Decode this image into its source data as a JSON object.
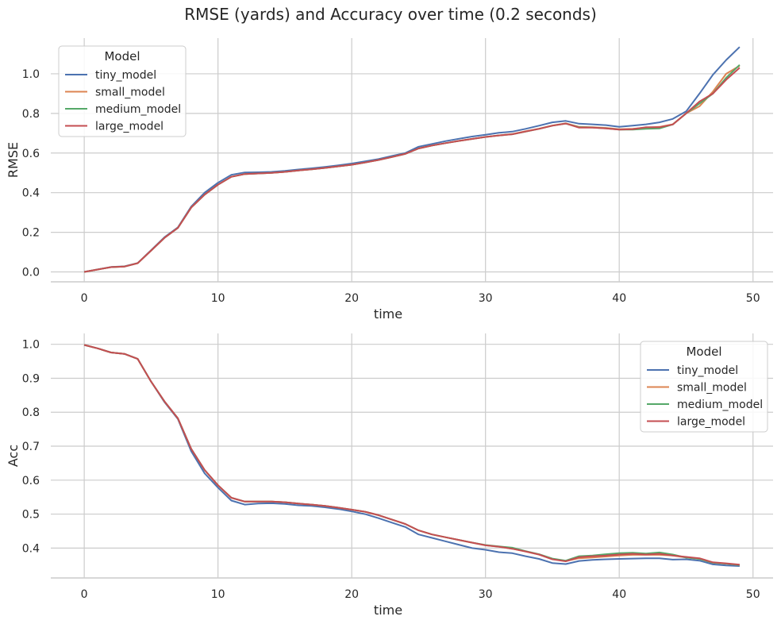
{
  "figure_title": "RMSE (yards) and Accuracy over time (0.2 seconds)",
  "chart_data": [
    {
      "type": "line",
      "title": "RMSE (yards) and Accuracy over time (0.2 seconds)",
      "xlabel": "time",
      "ylabel": "RMSE",
      "xlim": [
        -2.5,
        51.5
      ],
      "ylim": [
        -0.05,
        1.18
      ],
      "xticks": [
        0,
        10,
        20,
        30,
        40,
        50
      ],
      "xtick_labels": [
        "0",
        "10",
        "20",
        "30",
        "40",
        "50"
      ],
      "yticks": [
        0.0,
        0.2,
        0.4,
        0.6,
        0.8,
        1.0
      ],
      "ytick_labels": [
        "0.0",
        "0.2",
        "0.4",
        "0.6",
        "0.8",
        "1.0"
      ],
      "grid": true,
      "legend": {
        "title": "Model",
        "placement": "top-left"
      },
      "x": [
        0,
        1,
        2,
        3,
        4,
        5,
        6,
        7,
        8,
        9,
        10,
        11,
        12,
        13,
        14,
        15,
        16,
        17,
        18,
        19,
        20,
        21,
        22,
        23,
        24,
        25,
        26,
        27,
        28,
        29,
        30,
        31,
        32,
        33,
        34,
        35,
        36,
        37,
        38,
        39,
        40,
        41,
        42,
        43,
        44,
        45,
        46,
        47,
        48,
        49
      ],
      "series": [
        {
          "name": "tiny_model",
          "color": "#4c72b0",
          "values": [
            0.0,
            0.013,
            0.025,
            0.028,
            0.045,
            0.11,
            0.175,
            0.225,
            0.33,
            0.4,
            0.45,
            0.49,
            0.502,
            0.503,
            0.505,
            0.51,
            0.517,
            0.523,
            0.53,
            0.538,
            0.547,
            0.558,
            0.57,
            0.585,
            0.6,
            0.632,
            0.646,
            0.66,
            0.672,
            0.683,
            0.692,
            0.702,
            0.708,
            0.722,
            0.738,
            0.755,
            0.762,
            0.748,
            0.745,
            0.741,
            0.732,
            0.738,
            0.745,
            0.755,
            0.772,
            0.81,
            0.9,
            0.995,
            1.07,
            1.135
          ]
        },
        {
          "name": "small_model",
          "color": "#dd8452",
          "values": [
            0.0,
            0.012,
            0.024,
            0.027,
            0.044,
            0.108,
            0.172,
            0.222,
            0.325,
            0.39,
            0.44,
            0.48,
            0.494,
            0.497,
            0.5,
            0.505,
            0.512,
            0.518,
            0.525,
            0.533,
            0.541,
            0.552,
            0.565,
            0.58,
            0.596,
            0.623,
            0.638,
            0.65,
            0.661,
            0.671,
            0.681,
            0.689,
            0.696,
            0.71,
            0.723,
            0.739,
            0.75,
            0.732,
            0.73,
            0.727,
            0.72,
            0.722,
            0.728,
            0.732,
            0.745,
            0.8,
            0.836,
            0.91,
            1.0,
            1.04
          ]
        },
        {
          "name": "medium_model",
          "color": "#55a868",
          "values": [
            0.0,
            0.012,
            0.024,
            0.027,
            0.044,
            0.108,
            0.172,
            0.222,
            0.325,
            0.39,
            0.44,
            0.48,
            0.494,
            0.497,
            0.5,
            0.505,
            0.512,
            0.518,
            0.525,
            0.533,
            0.541,
            0.552,
            0.565,
            0.58,
            0.596,
            0.623,
            0.638,
            0.65,
            0.661,
            0.671,
            0.681,
            0.689,
            0.695,
            0.708,
            0.722,
            0.738,
            0.749,
            0.73,
            0.729,
            0.725,
            0.718,
            0.718,
            0.722,
            0.724,
            0.744,
            0.8,
            0.85,
            0.9,
            0.98,
            1.045
          ]
        },
        {
          "name": "large_model",
          "color": "#c44e52",
          "values": [
            0.0,
            0.012,
            0.024,
            0.027,
            0.044,
            0.108,
            0.172,
            0.222,
            0.325,
            0.39,
            0.44,
            0.48,
            0.494,
            0.497,
            0.5,
            0.505,
            0.512,
            0.518,
            0.525,
            0.533,
            0.541,
            0.552,
            0.565,
            0.58,
            0.596,
            0.623,
            0.638,
            0.65,
            0.661,
            0.671,
            0.681,
            0.689,
            0.695,
            0.709,
            0.722,
            0.738,
            0.749,
            0.728,
            0.728,
            0.724,
            0.718,
            0.72,
            0.73,
            0.73,
            0.744,
            0.8,
            0.86,
            0.9,
            0.97,
            1.03
          ]
        }
      ]
    },
    {
      "type": "line",
      "xlabel": "time",
      "ylabel": "Acc",
      "xlim": [
        -2.5,
        51.5
      ],
      "ylim": [
        0.312,
        1.032
      ],
      "xticks": [
        0,
        10,
        20,
        30,
        40,
        50
      ],
      "xtick_labels": [
        "0",
        "10",
        "20",
        "30",
        "40",
        "50"
      ],
      "yticks": [
        0.4,
        0.5,
        0.6,
        0.7,
        0.8,
        0.9,
        1.0
      ],
      "ytick_labels": [
        "0.4",
        "0.5",
        "0.6",
        "0.7",
        "0.8",
        "0.9",
        "1.0"
      ],
      "grid": true,
      "legend": {
        "title": "Model",
        "placement": "top-right"
      },
      "x": [
        0,
        1,
        2,
        3,
        4,
        5,
        6,
        7,
        8,
        9,
        10,
        11,
        12,
        13,
        14,
        15,
        16,
        17,
        18,
        19,
        20,
        21,
        22,
        23,
        24,
        25,
        26,
        27,
        28,
        29,
        30,
        31,
        32,
        33,
        34,
        35,
        36,
        37,
        38,
        39,
        40,
        41,
        42,
        43,
        44,
        45,
        46,
        47,
        48,
        49
      ],
      "series": [
        {
          "name": "tiny_model",
          "color": "#4c72b0",
          "values": [
            0.998,
            0.988,
            0.976,
            0.972,
            0.957,
            0.89,
            0.83,
            0.78,
            0.685,
            0.62,
            0.578,
            0.54,
            0.528,
            0.531,
            0.532,
            0.53,
            0.526,
            0.524,
            0.52,
            0.515,
            0.508,
            0.5,
            0.488,
            0.475,
            0.462,
            0.44,
            0.43,
            0.42,
            0.41,
            0.4,
            0.395,
            0.388,
            0.385,
            0.376,
            0.368,
            0.356,
            0.353,
            0.362,
            0.365,
            0.367,
            0.368,
            0.369,
            0.37,
            0.37,
            0.366,
            0.367,
            0.363,
            0.352,
            0.349,
            0.347
          ]
        },
        {
          "name": "small_model",
          "color": "#dd8452",
          "values": [
            0.998,
            0.988,
            0.976,
            0.972,
            0.957,
            0.89,
            0.832,
            0.782,
            0.692,
            0.63,
            0.585,
            0.548,
            0.537,
            0.537,
            0.537,
            0.535,
            0.531,
            0.528,
            0.524,
            0.519,
            0.513,
            0.507,
            0.497,
            0.484,
            0.471,
            0.452,
            0.44,
            0.432,
            0.424,
            0.416,
            0.408,
            0.404,
            0.398,
            0.39,
            0.381,
            0.368,
            0.362,
            0.37,
            0.372,
            0.375,
            0.378,
            0.38,
            0.38,
            0.38,
            0.378,
            0.372,
            0.368,
            0.357,
            0.354,
            0.35
          ]
        },
        {
          "name": "medium_model",
          "color": "#55a868",
          "values": [
            0.998,
            0.988,
            0.976,
            0.972,
            0.957,
            0.89,
            0.832,
            0.782,
            0.692,
            0.63,
            0.585,
            0.548,
            0.537,
            0.537,
            0.537,
            0.535,
            0.531,
            0.528,
            0.524,
            0.519,
            0.513,
            0.507,
            0.497,
            0.484,
            0.471,
            0.452,
            0.44,
            0.432,
            0.424,
            0.416,
            0.409,
            0.405,
            0.401,
            0.391,
            0.382,
            0.369,
            0.363,
            0.376,
            0.378,
            0.382,
            0.385,
            0.386,
            0.384,
            0.387,
            0.381,
            0.372,
            0.368,
            0.357,
            0.354,
            0.35
          ]
        },
        {
          "name": "large_model",
          "color": "#c44e52",
          "values": [
            0.998,
            0.988,
            0.976,
            0.972,
            0.957,
            0.89,
            0.832,
            0.782,
            0.692,
            0.63,
            0.585,
            0.548,
            0.537,
            0.537,
            0.537,
            0.535,
            0.531,
            0.528,
            0.524,
            0.519,
            0.513,
            0.507,
            0.497,
            0.484,
            0.471,
            0.452,
            0.44,
            0.432,
            0.424,
            0.416,
            0.408,
            0.404,
            0.398,
            0.39,
            0.381,
            0.367,
            0.361,
            0.373,
            0.376,
            0.378,
            0.381,
            0.383,
            0.381,
            0.383,
            0.378,
            0.374,
            0.37,
            0.358,
            0.355,
            0.351
          ]
        }
      ]
    }
  ]
}
